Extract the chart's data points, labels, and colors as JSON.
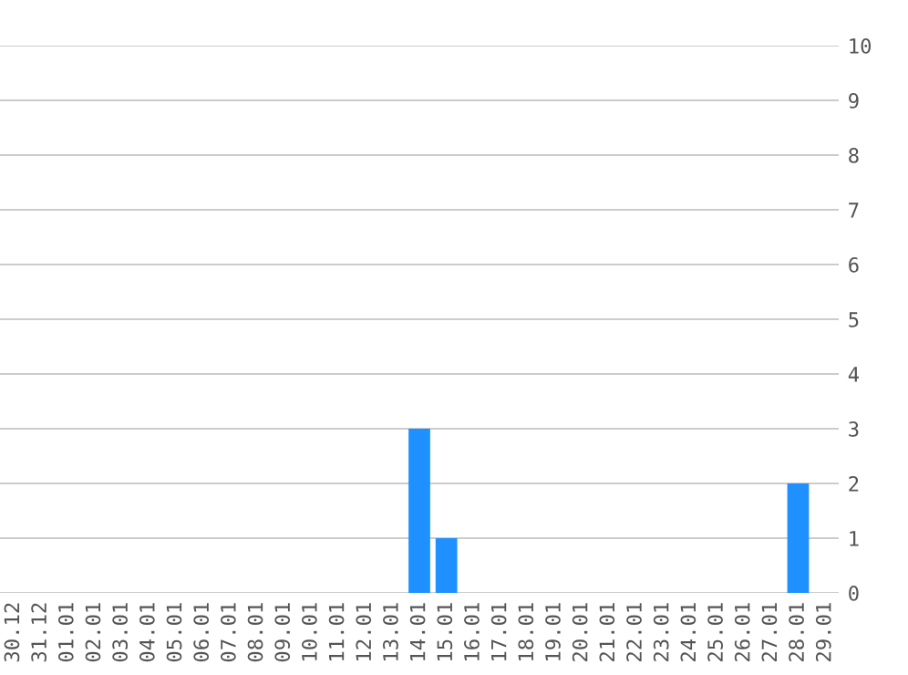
{
  "chart_data": {
    "type": "bar",
    "categories": [
      "30.12",
      "31.12",
      "01.01",
      "02.01",
      "03.01",
      "04.01",
      "05.01",
      "06.01",
      "07.01",
      "08.01",
      "09.01",
      "10.01",
      "11.01",
      "12.01",
      "13.01",
      "14.01",
      "15.01",
      "16.01",
      "17.01",
      "18.01",
      "19.01",
      "20.01",
      "21.01",
      "22.01",
      "23.01",
      "24.01",
      "25.01",
      "26.01",
      "27.01",
      "28.01",
      "29.01"
    ],
    "values": [
      0,
      0,
      0,
      0,
      0,
      0,
      0,
      0,
      0,
      0,
      0,
      0,
      0,
      0,
      0,
      3,
      1,
      0,
      0,
      0,
      0,
      0,
      0,
      0,
      0,
      0,
      0,
      0,
      0,
      2,
      0
    ],
    "color": "#1e90ff",
    "ylim": [
      0,
      10
    ],
    "yticks": [
      0,
      1,
      2,
      3,
      4,
      5,
      6,
      7,
      8,
      9,
      10
    ],
    "grid": "y"
  }
}
